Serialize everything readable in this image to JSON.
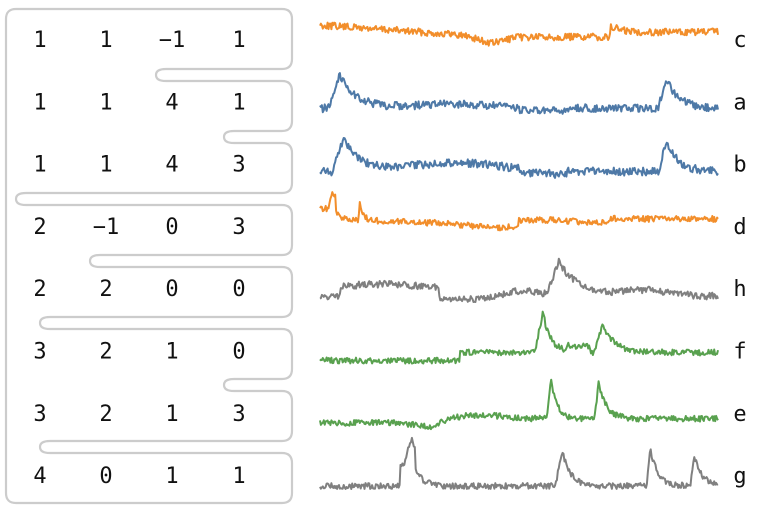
{
  "rows": [
    {
      "id": "c",
      "code": [
        "1",
        "1",
        "−1",
        "1"
      ],
      "shape": "c"
    },
    {
      "id": "a",
      "code": [
        "1",
        "1",
        "4",
        "1"
      ],
      "shape": "a"
    },
    {
      "id": "b",
      "code": [
        "1",
        "1",
        "4",
        "3"
      ],
      "shape": "b"
    },
    {
      "id": "d",
      "code": [
        "2",
        "−1",
        "0",
        "3"
      ],
      "shape": "d"
    },
    {
      "id": "h",
      "code": [
        "2",
        "2",
        "0",
        "0"
      ],
      "shape": "h"
    },
    {
      "id": "f",
      "code": [
        "3",
        "2",
        "1",
        "0"
      ],
      "shape": "f"
    },
    {
      "id": "e",
      "code": [
        "3",
        "2",
        "1",
        "3"
      ],
      "shape": "e"
    },
    {
      "id": "g",
      "code": [
        "4",
        "0",
        "1",
        "1"
      ],
      "shape": "g"
    }
  ],
  "labels": [
    "c",
    "a",
    "b",
    "d",
    "h",
    "f",
    "e",
    "g"
  ],
  "colors": {
    "c": "#f28e2b",
    "d": "#f28e2b",
    "a": "#4e79a7",
    "b": "#4e79a7",
    "h": "#808080",
    "g": "#808080",
    "f": "#59a14f",
    "e": "#59a14f",
    "border": "#cccccc"
  }
}
